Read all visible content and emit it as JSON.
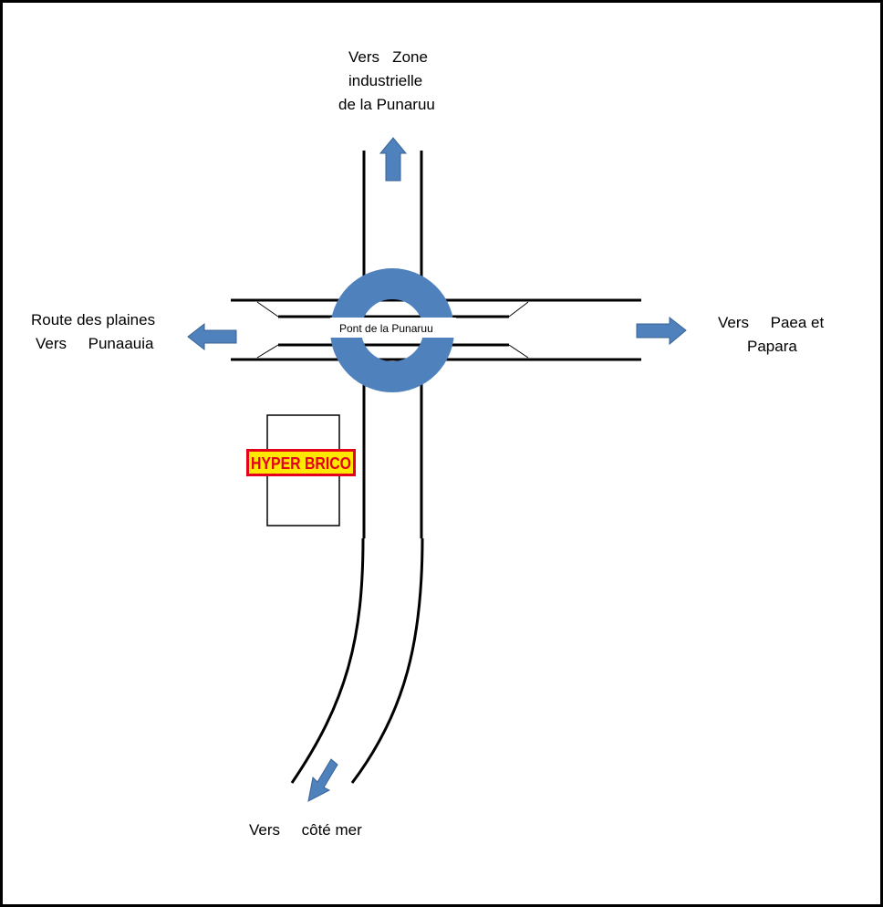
{
  "colors": {
    "roundabout": "#4f81bd",
    "arrow": "#4f81bd",
    "arrow_stroke": "#3a6494",
    "road": "#000000",
    "logo_red": "#e3001b",
    "logo_yellow": "#ffe800"
  },
  "destinations": {
    "north": [
      "Vers   Zone",
      "industrielle",
      "de la Punaruu"
    ],
    "west": [
      "Route des plaines",
      "Vers     Punaauia"
    ],
    "east": [
      "Vers     Paea et",
      "Papara"
    ],
    "south": "Vers     côté mer"
  },
  "bridge": {
    "label": "Pont de la Punaruu"
  },
  "store": {
    "logo_text": "HYPER BRICO"
  },
  "icons": {
    "north": "arrow-up-icon",
    "west": "arrow-left-icon",
    "east": "arrow-right-icon",
    "south": "arrow-down-left-icon"
  }
}
